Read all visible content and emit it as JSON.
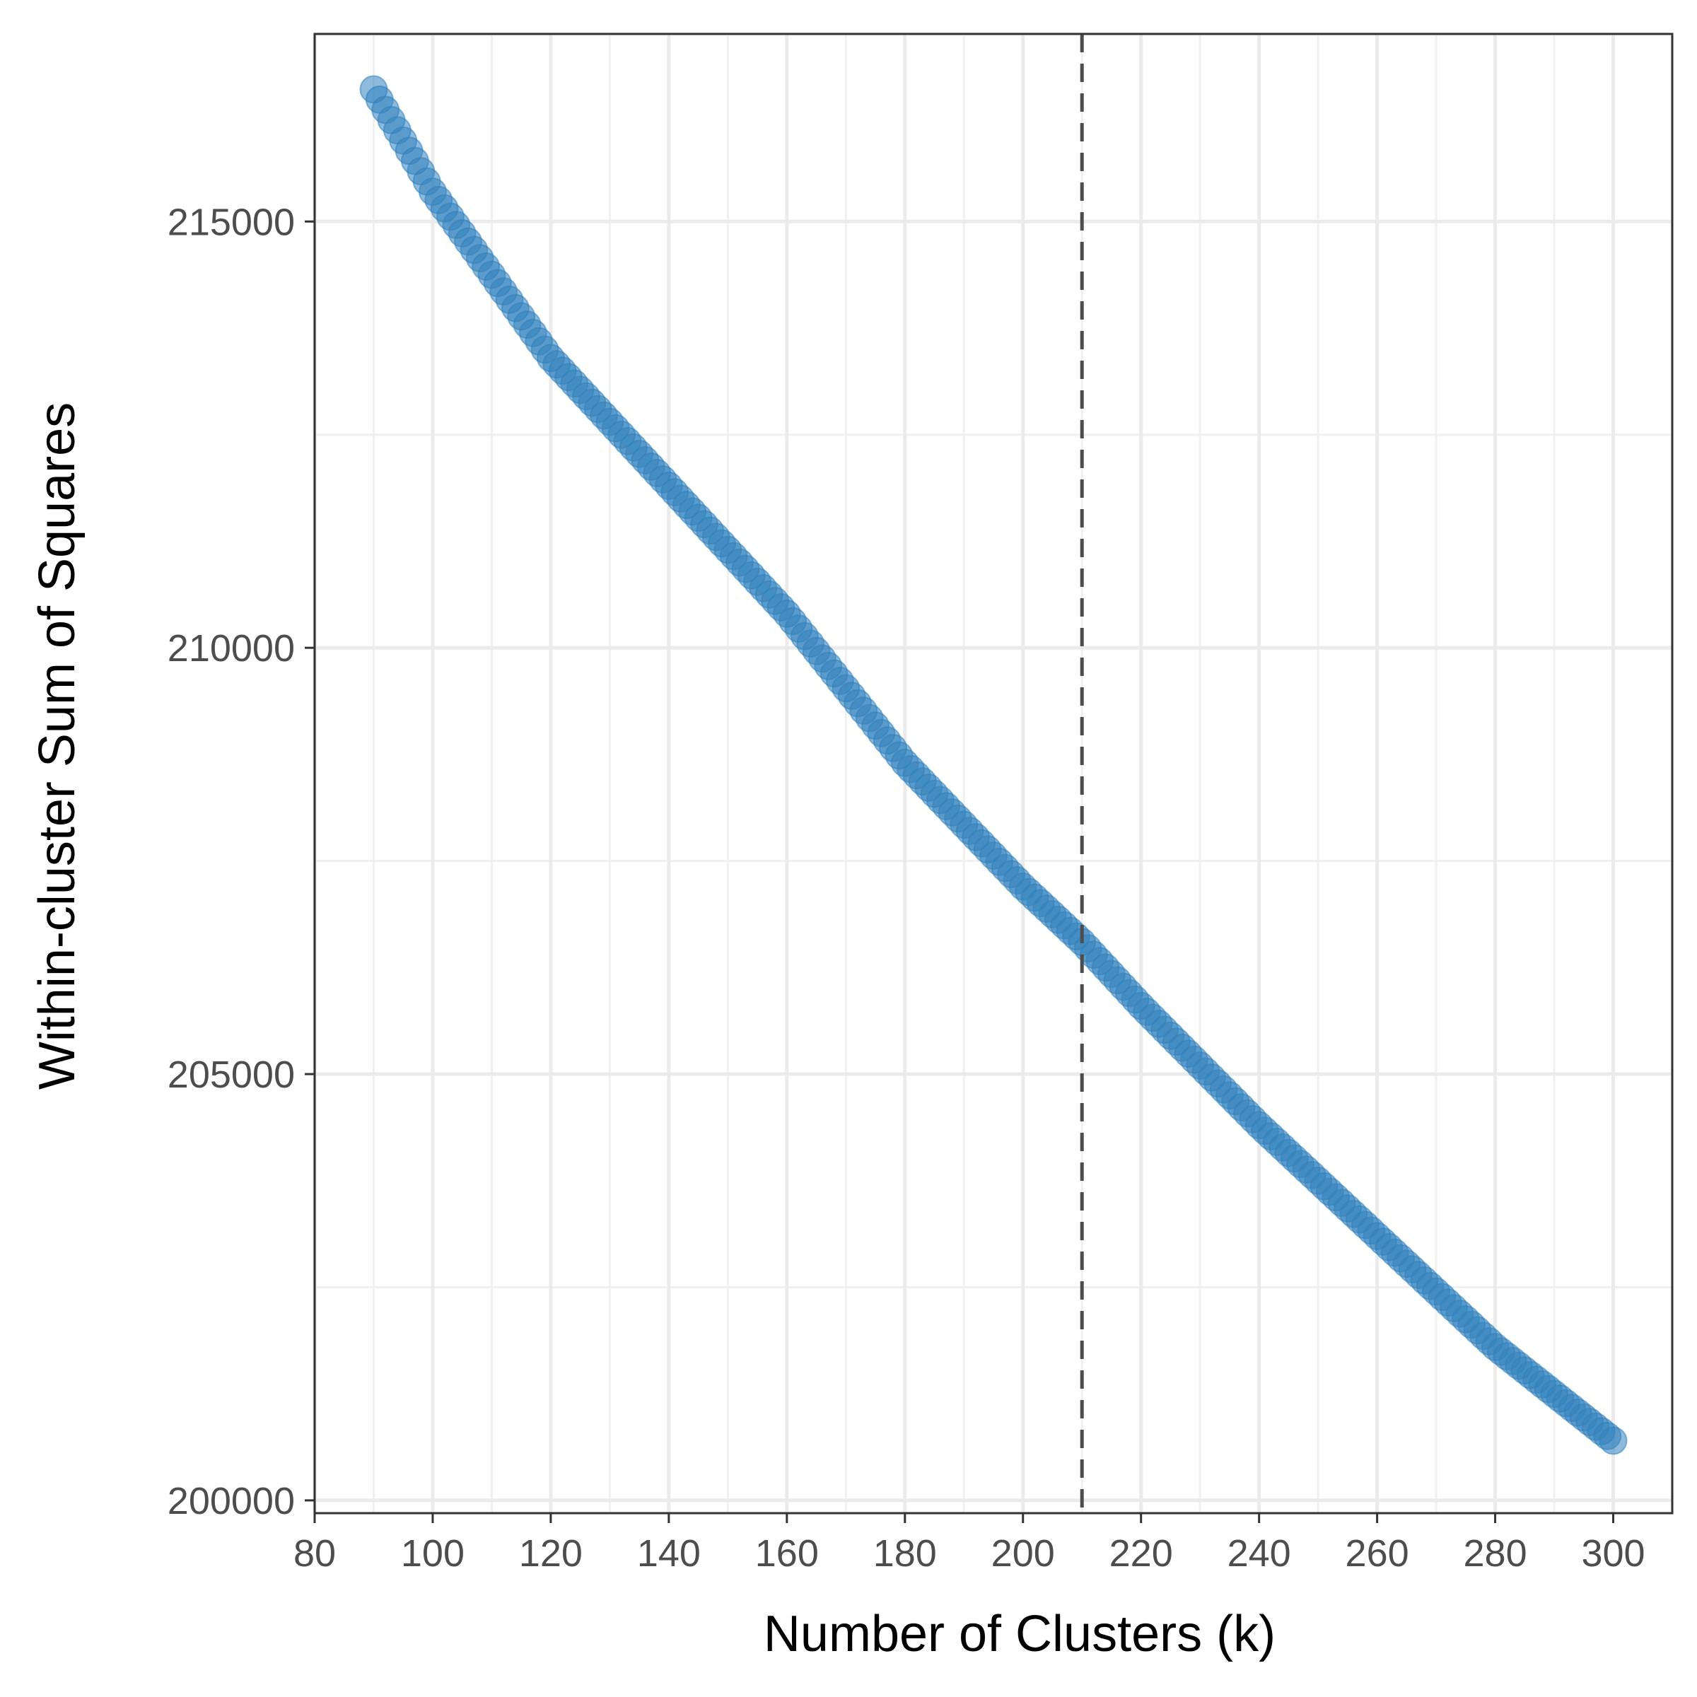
{
  "chart_data": {
    "type": "scatter",
    "title": "",
    "xlabel": "Number of Clusters (k)",
    "ylabel": "Within-cluster Sum of Squares",
    "xlim": [
      80,
      310
    ],
    "ylim": [
      199850,
      217200
    ],
    "x_ticks": [
      80,
      100,
      120,
      140,
      160,
      180,
      200,
      220,
      240,
      260,
      280,
      300
    ],
    "x_tick_labels": [
      "80",
      "100",
      "120",
      "140",
      "160",
      "180",
      "200",
      "220",
      "240",
      "260",
      "280",
      "300"
    ],
    "y_ticks": [
      200000,
      205000,
      210000,
      215000
    ],
    "y_tick_labels": [
      "200000",
      "205000",
      "210000",
      "215000"
    ],
    "grid": true,
    "legend": "none",
    "reference_line": {
      "orientation": "vertical",
      "x": 210,
      "style": "dashed",
      "color": "#4d4d4d"
    },
    "point_color": "#3182bd",
    "series": [
      {
        "x_start": 90,
        "x_end": 300,
        "x_step": 1,
        "anchors": [
          {
            "x": 90,
            "y": 216550
          },
          {
            "x": 100,
            "y": 215350
          },
          {
            "x": 120,
            "y": 213400
          },
          {
            "x": 140,
            "y": 211900
          },
          {
            "x": 160,
            "y": 210400
          },
          {
            "x": 180,
            "y": 208650
          },
          {
            "x": 200,
            "y": 207200
          },
          {
            "x": 210,
            "y": 206550
          },
          {
            "x": 220,
            "y": 205800
          },
          {
            "x": 240,
            "y": 204400
          },
          {
            "x": 260,
            "y": 203100
          },
          {
            "x": 280,
            "y": 201800
          },
          {
            "x": 300,
            "y": 200700
          }
        ]
      }
    ]
  }
}
